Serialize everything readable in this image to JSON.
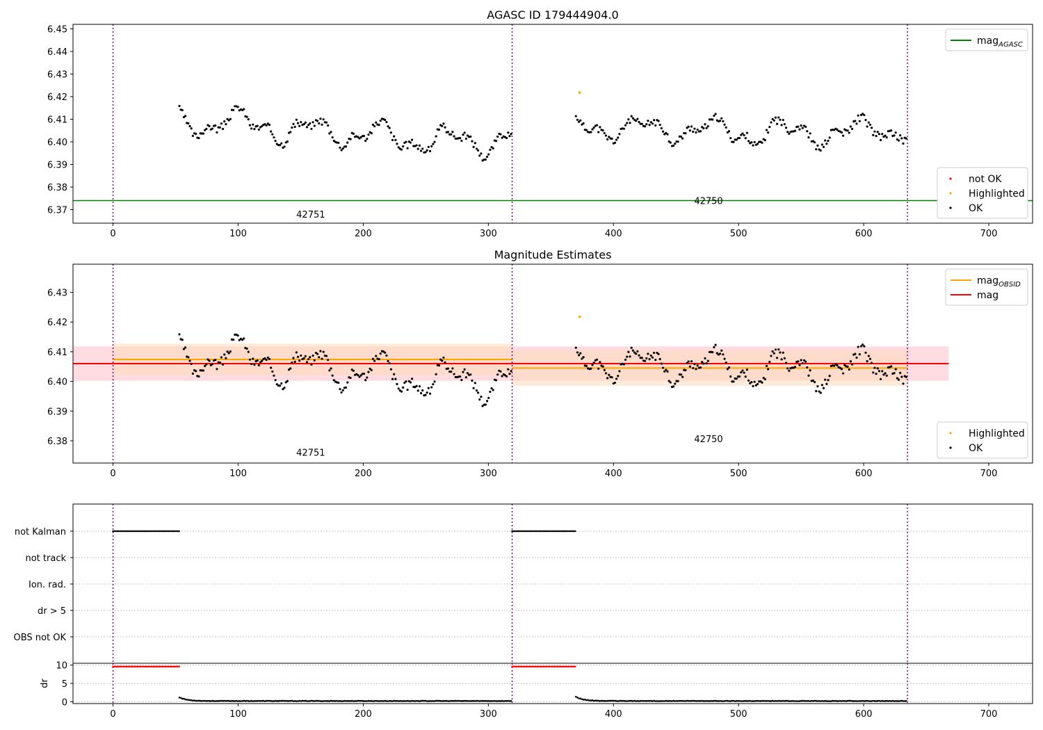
{
  "chart_data": [
    {
      "type": "scatter",
      "title": "AGASC ID 179444904.0",
      "xlim": [
        -32,
        735
      ],
      "ylim": [
        6.364,
        6.452
      ],
      "x_ticks": [
        0,
        100,
        200,
        300,
        400,
        500,
        600,
        700
      ],
      "y_ticks": [
        6.37,
        6.38,
        6.39,
        6.4,
        6.41,
        6.42,
        6.43,
        6.44,
        6.45
      ],
      "y_tick_labels": [
        "6.37",
        "6.38",
        "6.39",
        "6.40",
        "6.41",
        "6.42",
        "6.43",
        "6.44",
        "6.45"
      ],
      "obsid_boundaries": [
        0,
        319,
        635
      ],
      "obsid_labels": [
        {
          "text": "42751",
          "x": 158,
          "y": 6.3665
        },
        {
          "text": "42750",
          "x": 476,
          "y": 6.3725
        }
      ],
      "reference_lines": [
        {
          "name": "mag_AGASC",
          "y": 6.374,
          "x_range": [
            -32,
            735
          ],
          "color": "#008000"
        }
      ],
      "legends": [
        {
          "position": "top-right",
          "items": [
            {
              "label": "mag",
              "subscript": "AGASC",
              "kind": "line",
              "color": "#008000"
            }
          ]
        },
        {
          "position": "bottom-right",
          "items": [
            {
              "label": "not OK",
              "kind": "point",
              "color": "#ff0000"
            },
            {
              "label": "Highlighted",
              "kind": "point",
              "color": "#ffa500"
            },
            {
              "label": "OK",
              "kind": "point",
              "color": "#000000"
            }
          ]
        }
      ],
      "series": [
        {
          "name": "OK",
          "color": "#000000",
          "segments": [
            {
              "x_start": 53,
              "x_end": 319,
              "step": 1.2,
              "base": 6.41,
              "trend": -0.01,
              "seed": 3
            },
            {
              "x_start": 370,
              "x_end": 635,
              "step": 1.2,
              "base": 6.406,
              "trend": 0.0,
              "seed": 11
            }
          ]
        },
        {
          "name": "Highlighted",
          "color": "#ffa500",
          "points": [
            [
              373,
              6.4218
            ]
          ]
        }
      ]
    },
    {
      "type": "scatter",
      "title": "Magnitude Estimates",
      "xlim": [
        -32,
        735
      ],
      "ylim": [
        6.3725,
        6.4395
      ],
      "x_ticks": [
        0,
        100,
        200,
        300,
        400,
        500,
        600,
        700
      ],
      "y_ticks": [
        6.38,
        6.39,
        6.4,
        6.41,
        6.42,
        6.43
      ],
      "y_tick_labels": [
        "6.38",
        "6.39",
        "6.40",
        "6.41",
        "6.42",
        "6.43"
      ],
      "obsid_boundaries": [
        0,
        319,
        635
      ],
      "obsid_labels": [
        {
          "text": "42751",
          "x": 158,
          "y": 6.375
        },
        {
          "text": "42750",
          "x": 476,
          "y": 6.3795
        }
      ],
      "reference_lines": [
        {
          "name": "mag",
          "y": 6.406,
          "x_range": [
            -32,
            668
          ],
          "color": "#ff0000",
          "band": [
            6.4002,
            6.4118
          ],
          "band_color": "#ffc0cb"
        },
        {
          "name": "mag_OBSID 42751",
          "y": 6.4074,
          "x_range": [
            0,
            319
          ],
          "color": "#ffa500",
          "band": [
            6.4021,
            6.4127
          ],
          "band_color": "#ffdab9"
        },
        {
          "name": "mag_OBSID 42750",
          "y": 6.4045,
          "x_range": [
            319,
            635
          ],
          "color": "#ffa500",
          "band": [
            6.3985,
            6.4105
          ],
          "band_color": "#ffdab9"
        }
      ],
      "legends": [
        {
          "position": "top-right",
          "items": [
            {
              "label": "mag",
              "subscript": "OBSID",
              "kind": "line",
              "color": "#ffa500"
            },
            {
              "label": "mag",
              "kind": "line",
              "color": "#ff0000"
            }
          ]
        },
        {
          "position": "bottom-right",
          "items": [
            {
              "label": "Highlighted",
              "kind": "point",
              "color": "#ffa500"
            },
            {
              "label": "OK",
              "kind": "point",
              "color": "#000000"
            }
          ]
        }
      ],
      "series": [
        {
          "name": "OK",
          "color": "#000000",
          "segments": [
            {
              "x_start": 53,
              "x_end": 319,
              "step": 1.2,
              "base": 6.41,
              "trend": -0.01,
              "seed": 3
            },
            {
              "x_start": 370,
              "x_end": 635,
              "step": 1.2,
              "base": 6.406,
              "trend": 0.0,
              "seed": 11
            }
          ]
        },
        {
          "name": "Highlighted",
          "color": "#ffa500",
          "points": [
            [
              373,
              6.4218
            ]
          ]
        }
      ]
    },
    {
      "type": "scatter",
      "title": "",
      "xlim": [
        -32,
        735
      ],
      "categories": [
        "not Kalman",
        "not track",
        "Ion. rad.",
        "dr > 5",
        "OBS not OK"
      ],
      "obsid_boundaries": [
        0,
        319,
        635
      ],
      "flag_ranges": [
        {
          "category": "not Kalman",
          "x_start": 0,
          "x_end": 53
        },
        {
          "category": "not Kalman",
          "x_start": 319,
          "x_end": 370
        }
      ]
    },
    {
      "type": "scatter",
      "title": "",
      "ylabel": "dr",
      "xlim": [
        -32,
        735
      ],
      "ylim": [
        -0.5,
        10.5
      ],
      "x_ticks": [
        0,
        100,
        200,
        300,
        400,
        500,
        600,
        700
      ],
      "y_ticks": [
        0,
        5,
        10
      ],
      "obsid_boundaries": [
        0,
        319,
        635
      ],
      "series": [
        {
          "name": "not OK",
          "color": "#ff0000",
          "ranges": [
            [
              0,
              53,
              9.6
            ],
            [
              319,
              370,
              9.6
            ]
          ]
        },
        {
          "name": "OK",
          "color": "#000000",
          "decay_segments": [
            [
              53,
              319,
              1.0
            ],
            [
              370,
              635,
              1.1
            ]
          ]
        }
      ]
    }
  ]
}
